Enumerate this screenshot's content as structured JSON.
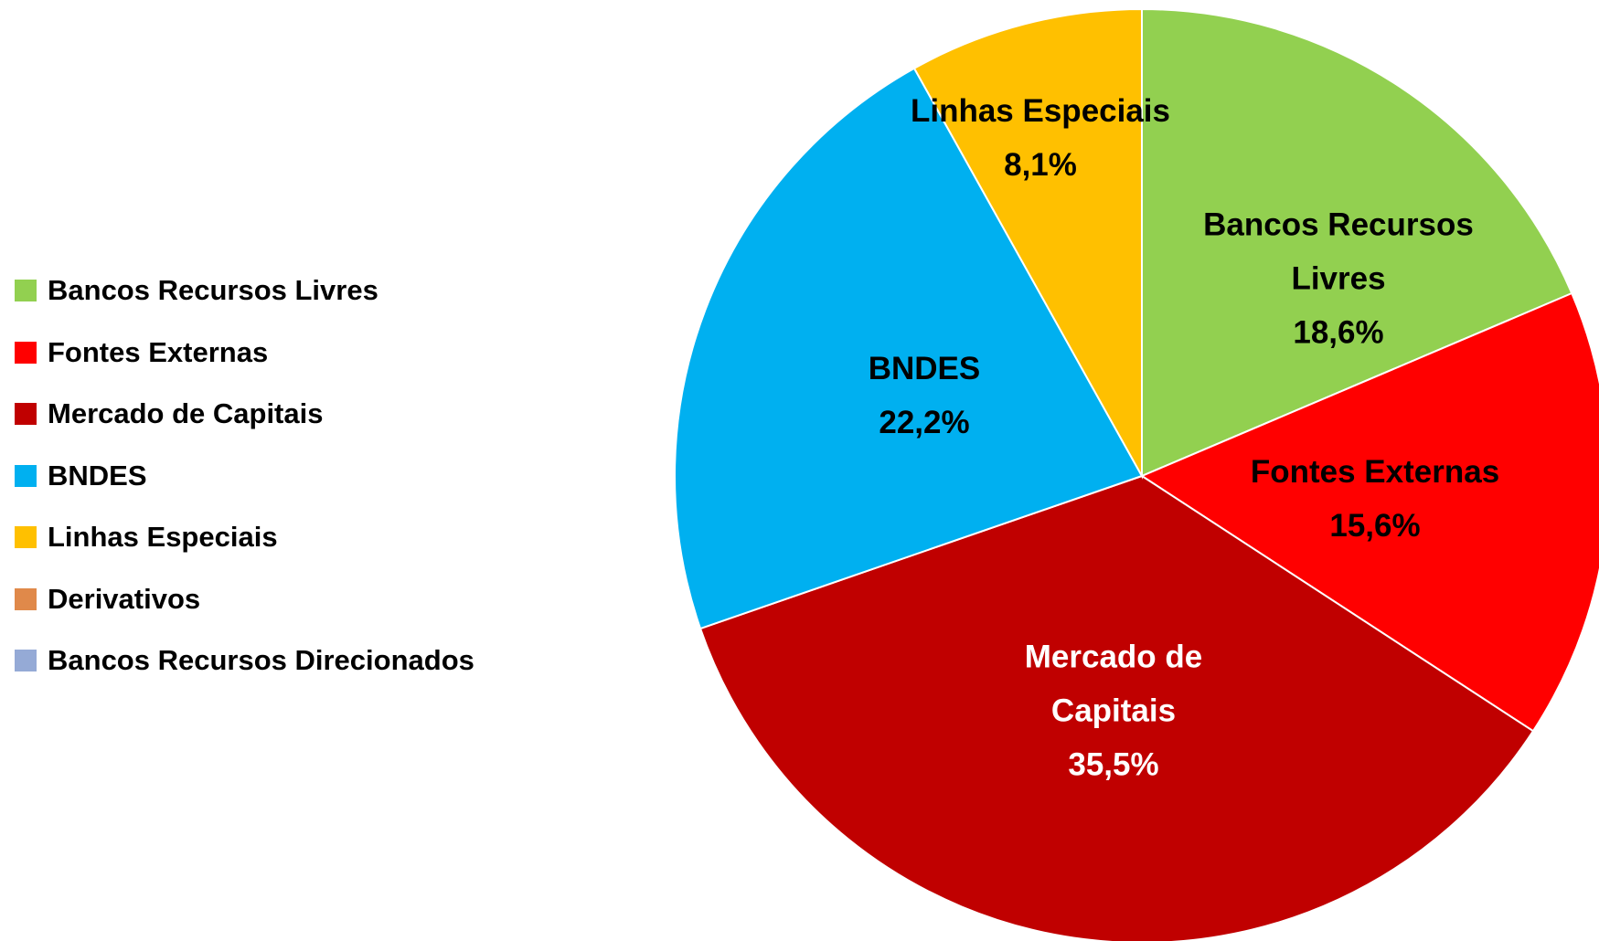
{
  "chart_data": {
    "type": "pie",
    "categories": [
      "Bancos Recursos Livres",
      "Fontes Externas",
      "Mercado de Capitais",
      "BNDES",
      "Linhas Especiais",
      "Derivativos",
      "Bancos Recursos Direcionados"
    ],
    "values": [
      18.6,
      15.6,
      35.5,
      22.2,
      8.1,
      0,
      0
    ],
    "value_labels": [
      "18,6%",
      "15,6%",
      "35,5%",
      "22,2%",
      "8,1%",
      null,
      null
    ],
    "colors": [
      "#92d050",
      "#ff0000",
      "#c00000",
      "#00b0f0",
      "#ffc000",
      "#e0894a",
      "#95aad6"
    ],
    "label_colors": [
      "#000000",
      "#000000",
      "#ffffff",
      "#000000",
      "#000000",
      "#000000",
      "#000000"
    ],
    "legend": "left"
  }
}
